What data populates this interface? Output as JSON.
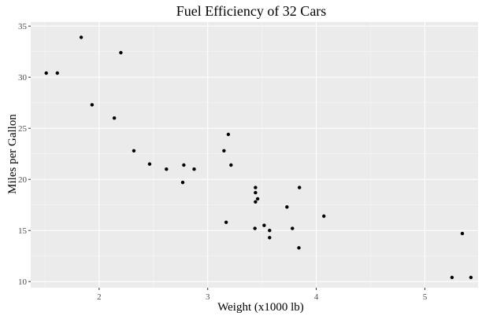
{
  "chart_data": {
    "type": "scatter",
    "title": "Fuel Efficiency of 32 Cars",
    "xlabel": "Weight (x1000 lb)",
    "ylabel": "Miles per Gallon",
    "xlim": [
      1.37,
      5.49
    ],
    "ylim": [
      9.4,
      35.4
    ],
    "xticks": [
      2,
      3,
      4,
      5
    ],
    "yticks": [
      10,
      15,
      20,
      25,
      30,
      35
    ],
    "grid": true,
    "legend": "none",
    "colors": {
      "panel_background": "#ebebeb",
      "major_grid": "#ffffff",
      "minor_grid": "#f5f5f5",
      "point": "#000000",
      "tick_label": "#4d4d4d"
    },
    "points": [
      {
        "x": 2.62,
        "y": 21.0
      },
      {
        "x": 2.875,
        "y": 21.0
      },
      {
        "x": 2.32,
        "y": 22.8
      },
      {
        "x": 3.215,
        "y": 21.4
      },
      {
        "x": 3.44,
        "y": 18.7
      },
      {
        "x": 3.46,
        "y": 18.1
      },
      {
        "x": 3.57,
        "y": 14.3
      },
      {
        "x": 3.19,
        "y": 24.4
      },
      {
        "x": 3.15,
        "y": 22.8
      },
      {
        "x": 3.44,
        "y": 19.2
      },
      {
        "x": 3.44,
        "y": 17.8
      },
      {
        "x": 4.07,
        "y": 16.4
      },
      {
        "x": 3.73,
        "y": 17.3
      },
      {
        "x": 3.78,
        "y": 15.2
      },
      {
        "x": 5.25,
        "y": 10.4
      },
      {
        "x": 5.424,
        "y": 10.4
      },
      {
        "x": 5.345,
        "y": 14.7
      },
      {
        "x": 2.2,
        "y": 32.4
      },
      {
        "x": 1.615,
        "y": 30.4
      },
      {
        "x": 1.835,
        "y": 33.9
      },
      {
        "x": 2.465,
        "y": 21.5
      },
      {
        "x": 3.52,
        "y": 15.5
      },
      {
        "x": 3.435,
        "y": 15.2
      },
      {
        "x": 3.84,
        "y": 13.3
      },
      {
        "x": 3.845,
        "y": 19.2
      },
      {
        "x": 1.935,
        "y": 27.3
      },
      {
        "x": 2.14,
        "y": 26.0
      },
      {
        "x": 1.513,
        "y": 30.4
      },
      {
        "x": 3.17,
        "y": 15.8
      },
      {
        "x": 2.77,
        "y": 19.7
      },
      {
        "x": 3.57,
        "y": 15.0
      },
      {
        "x": 2.78,
        "y": 21.4
      }
    ]
  }
}
